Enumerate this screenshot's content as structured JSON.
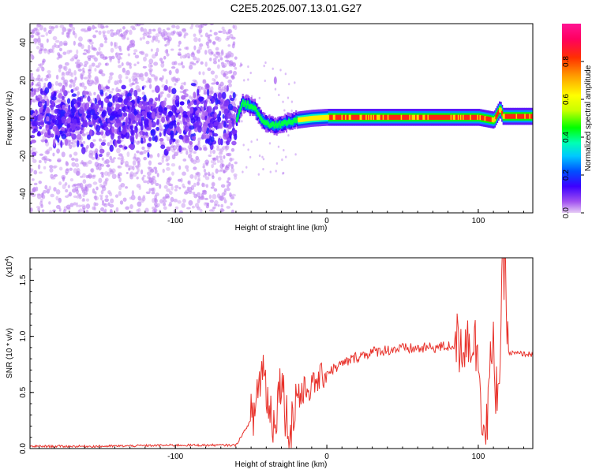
{
  "title": "C2E5.2025.007.13.01.G27",
  "chart_data": [
    {
      "type": "heatmap",
      "name": "spectrogram",
      "xlabel": "Height of straight line (km)",
      "ylabel": "Frequency (Hz)",
      "xlim": [
        -196,
        136
      ],
      "ylim": [
        -50,
        50
      ],
      "xticks": [
        -100,
        0,
        100
      ],
      "yticks": [
        -40,
        -20,
        0,
        20,
        40
      ],
      "colorbar": {
        "label": "Normalized spectral amplitude",
        "range": [
          0,
          1
        ],
        "ticks": [
          "0.0",
          "0.2",
          "0.4",
          "0.6",
          "0.8"
        ],
        "colors": [
          "#e6ccf5",
          "#a050f0",
          "#3c00ff",
          "#0050ff",
          "#00c8ff",
          "#00ffb4",
          "#00ff00",
          "#c8ff00",
          "#ffff00",
          "#ffa000",
          "#ff3000",
          "#ff0060",
          "#ff1493"
        ]
      },
      "ridge": [
        {
          "x": -196,
          "f": 0
        },
        {
          "x": -150,
          "f": 0
        },
        {
          "x": -100,
          "f": 0
        },
        {
          "x": -60,
          "f": 0
        },
        {
          "x": -56,
          "f": 8
        },
        {
          "x": -52,
          "f": 7
        },
        {
          "x": -48,
          "f": 5
        },
        {
          "x": -44,
          "f": 0
        },
        {
          "x": -40,
          "f": -3
        },
        {
          "x": -35,
          "f": -4
        },
        {
          "x": -30,
          "f": -3
        },
        {
          "x": -25,
          "f": -2
        },
        {
          "x": -20,
          "f": -1
        },
        {
          "x": -10,
          "f": 0
        },
        {
          "x": 0,
          "f": 0.5
        },
        {
          "x": 20,
          "f": 0.5
        },
        {
          "x": 60,
          "f": 0.5
        },
        {
          "x": 100,
          "f": 0.5
        },
        {
          "x": 110,
          "f": -1
        },
        {
          "x": 114,
          "f": 5
        },
        {
          "x": 116,
          "f": 1
        },
        {
          "x": 136,
          "f": 1
        }
      ],
      "region_note": "Scattered low-amplitude noise for x < -60 km; concentrated ridge near 0 Hz for x > -60 km"
    },
    {
      "type": "line",
      "name": "snr",
      "xlabel": "Height of straight line (km)",
      "ylabel": "SNR (10 * v/v)",
      "yscale_label": "(x10",
      "yscale_exp": "4",
      "yscale_close": ")",
      "xlim": [
        -196,
        136
      ],
      "ylim": [
        0,
        1.7
      ],
      "xticks": [
        -100,
        0,
        100
      ],
      "yticks": [
        "0.0",
        "0.5",
        "1.0",
        "1.5"
      ],
      "color": "#e8312a",
      "series": [
        {
          "x": [
            -196,
            -150,
            -100,
            -60,
            -48,
            -45,
            -42,
            -40,
            -38,
            -35,
            -32,
            -30,
            -28,
            -25,
            -22,
            -20,
            -18,
            -15,
            -10,
            -5,
            0,
            10,
            20,
            30,
            40,
            50,
            60,
            70,
            80,
            90,
            95,
            100,
            103,
            105,
            107,
            110,
            112,
            114,
            116,
            118,
            120,
            136
          ],
          "y": [
            0.02,
            0.02,
            0.03,
            0.03,
            0.3,
            0.6,
            0.72,
            0.55,
            0.35,
            0.25,
            0.45,
            0.7,
            0.4,
            0.15,
            0.3,
            0.5,
            0.48,
            0.52,
            0.55,
            0.62,
            0.68,
            0.75,
            0.82,
            0.86,
            0.88,
            0.89,
            0.89,
            0.9,
            0.91,
            0.95,
            1.0,
            0.85,
            0.3,
            0.05,
            0.6,
            0.85,
            0.5,
            0.7,
            1.5,
            1.6,
            0.85,
            0.84
          ]
        }
      ]
    }
  ]
}
